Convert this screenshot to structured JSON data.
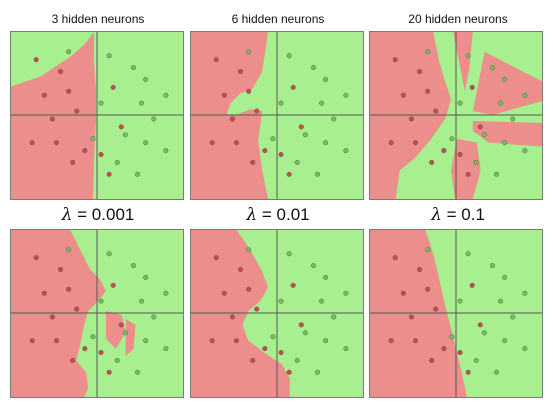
{
  "colors": {
    "green_region": "#a8f08f",
    "red_region": "#ec8e8b",
    "red_point": "#c94b4b",
    "green_point": "#6cc45a",
    "axis": "#555555"
  },
  "top_row": {
    "titles": [
      "3 hidden neurons",
      "6 hidden neurons",
      "20 hidden neurons"
    ]
  },
  "bottom_row": {
    "lambda_symbol": "λ",
    "lambda_labels": [
      "= 0.001",
      "= 0.01",
      "= 0.1"
    ]
  },
  "points": {
    "red": [
      [
        -0.75,
        0.7
      ],
      [
        -0.45,
        0.55
      ],
      [
        -0.65,
        0.25
      ],
      [
        -0.35,
        0.3
      ],
      [
        -0.25,
        0.05
      ],
      [
        -0.55,
        -0.05
      ],
      [
        -0.8,
        -0.35
      ],
      [
        -0.5,
        -0.35
      ],
      [
        -0.15,
        -0.45
      ],
      [
        0.05,
        -0.5
      ],
      [
        0.2,
        0.35
      ],
      [
        0.3,
        -0.15
      ],
      [
        0.15,
        -0.75
      ],
      [
        -0.3,
        -0.6
      ]
    ],
    "green": [
      [
        -0.35,
        0.8
      ],
      [
        0.15,
        0.75
      ],
      [
        0.45,
        0.6
      ],
      [
        0.6,
        0.45
      ],
      [
        0.85,
        0.25
      ],
      [
        0.55,
        0.15
      ],
      [
        0.7,
        -0.05
      ],
      [
        0.35,
        -0.25
      ],
      [
        0.6,
        -0.35
      ],
      [
        0.85,
        -0.45
      ],
      [
        0.25,
        -0.6
      ],
      [
        0.5,
        -0.75
      ],
      [
        -0.05,
        -0.3
      ],
      [
        0.05,
        0.15
      ]
    ]
  }
}
